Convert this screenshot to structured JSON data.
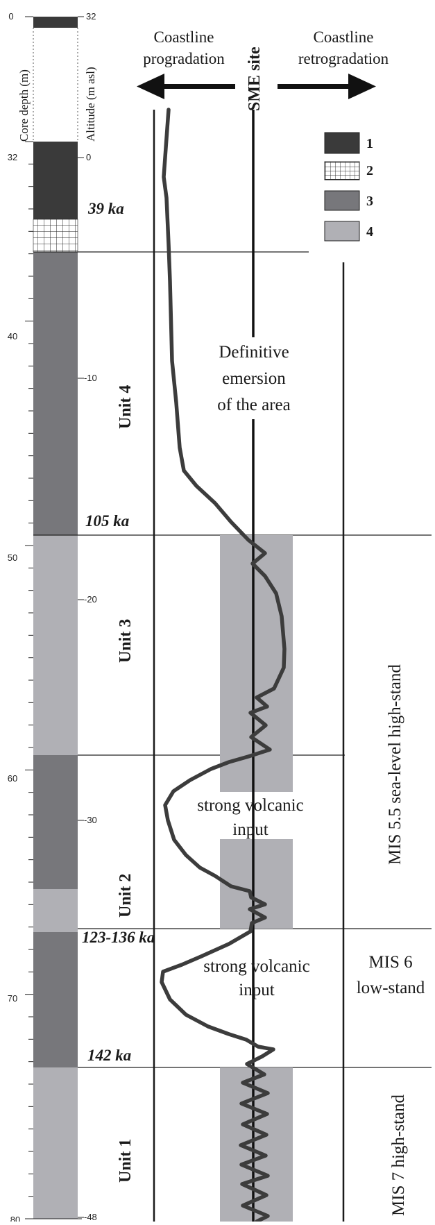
{
  "axes": {
    "core_depth_label": "Core depth (m)",
    "altitude_label": "Altitude (m asl)",
    "depth_ticks": [
      "0",
      "32",
      "40",
      "50",
      "60",
      "70",
      "80"
    ],
    "altitude_ticks": [
      "32",
      "0",
      "-10",
      "-20",
      "-30",
      "-48"
    ]
  },
  "header": {
    "left_arrow_label_line1": "Coastline",
    "left_arrow_label_line2": "progradation",
    "site_label": "SME site",
    "right_arrow_label_line1": "Coastline",
    "right_arrow_label_line2": "retrogradation"
  },
  "legend": [
    {
      "number": "1",
      "color": "#3a3a3a"
    },
    {
      "number": "2",
      "pattern": "grid"
    },
    {
      "number": "3",
      "color": "#77777b"
    },
    {
      "number": "4",
      "color": "#b0b0b5"
    }
  ],
  "ages": [
    "39 ka",
    "105 ka",
    "123-136 ka",
    "142 ka"
  ],
  "units": [
    "Unit 4",
    "Unit 3",
    "Unit 2",
    "Unit 1"
  ],
  "annotations": {
    "emersion_line1": "Definitive",
    "emersion_line2": "emersion",
    "emersion_line3": "of the area",
    "volcanic1_line1": "strong volcanic",
    "volcanic1_line2": "input",
    "volcanic2_line1": "strong volcanic",
    "volcanic2_line2": "input"
  },
  "stages": {
    "mis55": "MIS 5.5 sea-level  high-stand",
    "mis6_line1": "MIS 6",
    "mis6_line2": "low-stand",
    "mis7": "MIS 7 high-stand"
  },
  "colors": {
    "dark": "#3a3a3a",
    "medium": "#77777b",
    "light": "#b0b0b5",
    "band": "#b0b0b5",
    "curve": "#3c3c3c"
  }
}
